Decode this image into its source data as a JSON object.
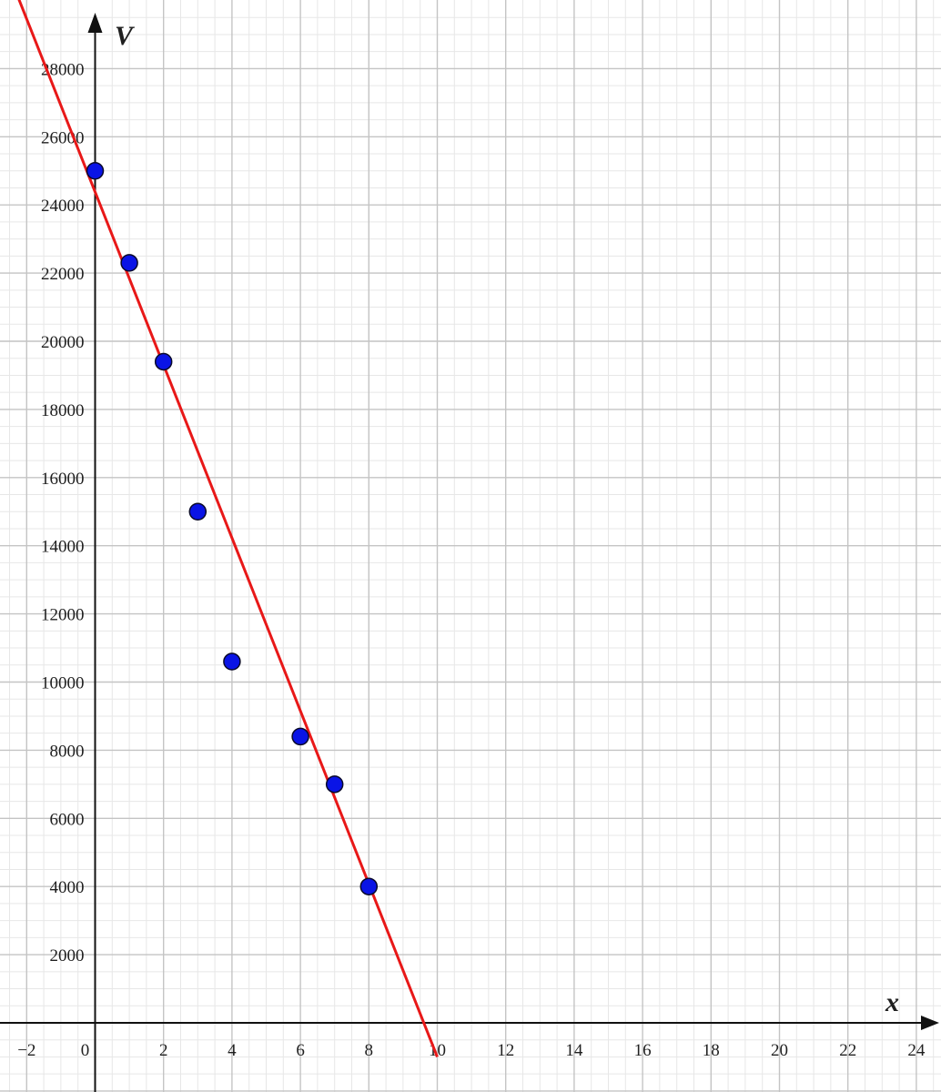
{
  "chart_data": {
    "type": "scatter",
    "xlabel": "x",
    "ylabel": "V",
    "xlim": [
      -2.6,
      24.7
    ],
    "ylim": [
      -2000,
      29500
    ],
    "x_ticks": [
      -2,
      0,
      2,
      4,
      6,
      8,
      10,
      12,
      14,
      16,
      18,
      20,
      22,
      24
    ],
    "x_tick_labels": [
      "−2",
      "0",
      "2",
      "4",
      "6",
      "8",
      "10",
      "12",
      "14",
      "16",
      "18",
      "20",
      "22",
      "24"
    ],
    "y_ticks": [
      2000,
      4000,
      6000,
      8000,
      10000,
      12000,
      14000,
      16000,
      18000,
      20000,
      22000,
      24000,
      26000,
      28000
    ],
    "y_tick_labels": [
      "2000",
      "4000",
      "6000",
      "8000",
      "10000",
      "12000",
      "14000",
      "16000",
      "18000",
      "20000",
      "22000",
      "24000",
      "26000",
      "28000"
    ],
    "grid": true,
    "series": [
      {
        "type": "scatter",
        "x": [
          0,
          1,
          2,
          3,
          4,
          6,
          7,
          8
        ],
        "y": [
          25000,
          22300,
          19400,
          15000,
          10600,
          8400,
          7000,
          4000
        ]
      },
      {
        "type": "line",
        "x": [
          -2.6,
          10
        ],
        "y": [
          30980,
          -1000
        ]
      }
    ],
    "colors": {
      "points": "#0a14e6",
      "point_stroke": "#0a0a2a",
      "line": "#e81818",
      "axis": "#111111",
      "major_grid": "#c4c4c4",
      "minor_grid": "#e7e7e7"
    }
  }
}
